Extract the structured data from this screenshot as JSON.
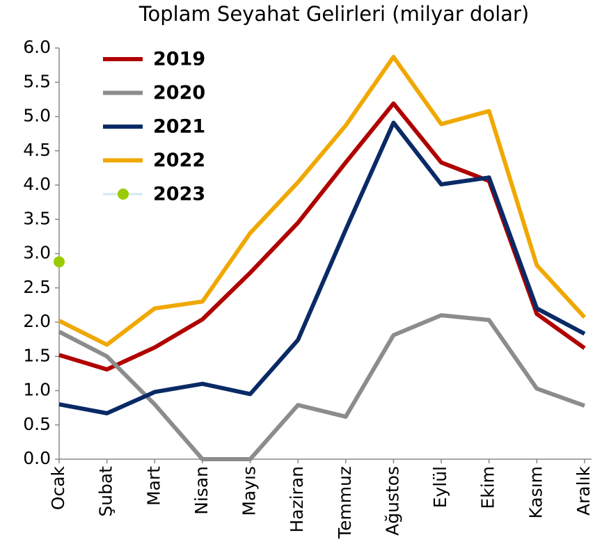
{
  "chart_data": {
    "type": "line",
    "title": "Toplam Seyahat Gelirleri (milyar dolar)",
    "categories": [
      "Ocak",
      "Şubat",
      "Mart",
      "Nisan",
      "Mayıs",
      "Haziran",
      "Temmuz",
      "Ağustos",
      "Eylül",
      "Ekim",
      "Kasım",
      "Aralık"
    ],
    "series": [
      {
        "name": "2019",
        "color": "#b00000",
        "values": [
          1.52,
          1.31,
          1.63,
          2.04,
          2.72,
          3.45,
          4.33,
          5.19,
          4.33,
          4.06,
          2.12,
          1.62
        ]
      },
      {
        "name": "2020",
        "color": "#8c8c8c",
        "values": [
          1.86,
          1.5,
          0.8,
          0.0,
          0.0,
          0.79,
          0.62,
          1.81,
          2.1,
          2.03,
          1.03,
          0.78
        ]
      },
      {
        "name": "2021",
        "color": "#0a2a66",
        "values": [
          0.8,
          0.67,
          0.98,
          1.1,
          0.95,
          1.74,
          3.35,
          4.91,
          4.01,
          4.11,
          2.2,
          1.83
        ]
      },
      {
        "name": "2022",
        "color": "#f0a800",
        "values": [
          2.02,
          1.67,
          2.2,
          2.3,
          3.3,
          4.04,
          4.87,
          5.87,
          4.89,
          5.08,
          2.83,
          2.07
        ]
      },
      {
        "name": "2023",
        "color": "#99cc00",
        "values": [
          2.88,
          null,
          null,
          null,
          null,
          null,
          null,
          null,
          null,
          null,
          null,
          null
        ]
      }
    ],
    "ylim": [
      0,
      6
    ],
    "yticks": [
      {
        "value": 0,
        "label": "0.0"
      },
      0.5,
      {
        "value": 1,
        "label": "1.0"
      },
      1.5,
      {
        "value": 2,
        "label": "2.0"
      },
      2.5,
      {
        "value": 3,
        "label": "3.0"
      },
      3.5,
      {
        "value": 4,
        "label": "4.0"
      },
      4.5,
      {
        "value": 5,
        "label": "5.0"
      },
      5.5,
      {
        "value": 6,
        "label": "6.0"
      }
    ],
    "grid": false,
    "legend": "upper left"
  }
}
